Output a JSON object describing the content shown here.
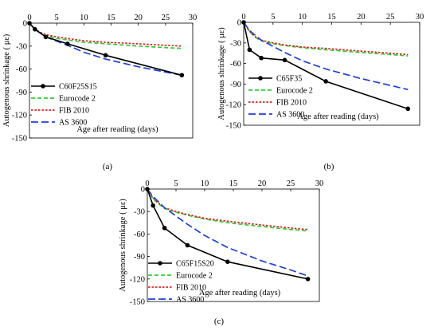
{
  "chart_data": [
    {
      "type": "line",
      "panel_label": "(a)",
      "xlabel": "Age after reading (days)",
      "ylabel": "Autogenous shrinkage ( με)",
      "xlim": [
        0,
        30
      ],
      "ylim": [
        -150,
        0
      ],
      "x_ticks": [
        0,
        5,
        10,
        15,
        20,
        25,
        30
      ],
      "y_ticks": [
        0,
        -30,
        -60,
        -90,
        -120,
        -150
      ],
      "x_axis_position": "top",
      "grid": false,
      "legend_position": "bottom-left",
      "series": [
        {
          "name": "C60F25S15",
          "color": "#000000",
          "style": "solid-marker",
          "x": [
            0,
            1,
            3,
            7,
            14,
            28
          ],
          "y": [
            0,
            -8,
            -18,
            -27,
            -42,
            -68
          ]
        },
        {
          "name": "Eurocode 2",
          "color": "#33cc33",
          "style": "dash",
          "x": [
            0,
            1,
            2,
            3,
            5,
            7,
            10,
            14,
            20,
            25,
            28
          ],
          "y": [
            0,
            -9,
            -13,
            -16,
            -20,
            -22,
            -25,
            -27,
            -30,
            -32,
            -33
          ]
        },
        {
          "name": "FIB 2010",
          "color": "#e02020",
          "style": "dot",
          "x": [
            0,
            1,
            2,
            3,
            5,
            7,
            10,
            14,
            20,
            25,
            28
          ],
          "y": [
            0,
            -8,
            -12,
            -15,
            -18,
            -20,
            -23,
            -25,
            -27,
            -29,
            -30
          ]
        },
        {
          "name": "AS 3600",
          "color": "#1f3fd9",
          "style": "longdash",
          "x": [
            0,
            1,
            3,
            7,
            10,
            14,
            20,
            25,
            28
          ],
          "y": [
            0,
            -8,
            -18,
            -29,
            -38,
            -47,
            -57,
            -64,
            -68
          ]
        }
      ]
    },
    {
      "type": "line",
      "panel_label": "(b)",
      "xlabel": "Age after reading (days)",
      "ylabel": "Autogenous shrinkage ( με)",
      "xlim": [
        0,
        30
      ],
      "ylim": [
        -150,
        0
      ],
      "x_ticks": [
        0,
        5,
        10,
        15,
        20,
        25,
        30
      ],
      "y_ticks": [
        0,
        -30,
        -60,
        -90,
        -120,
        -150
      ],
      "x_axis_position": "top",
      "grid": false,
      "legend_position": "bottom-left",
      "series": [
        {
          "name": "C65F35",
          "color": "#000000",
          "style": "solid-marker",
          "x": [
            0,
            1,
            3,
            7,
            14,
            28
          ],
          "y": [
            0,
            -40,
            -52,
            -55,
            -86,
            -126
          ]
        },
        {
          "name": "Eurocode 2",
          "color": "#33cc33",
          "style": "dash",
          "x": [
            0,
            1,
            2,
            3,
            5,
            7,
            10,
            14,
            20,
            25,
            28
          ],
          "y": [
            0,
            -14,
            -22,
            -27,
            -31,
            -34,
            -37,
            -40,
            -44,
            -47,
            -49
          ]
        },
        {
          "name": "FIB 2010",
          "color": "#e02020",
          "style": "dot",
          "x": [
            0,
            1,
            2,
            3,
            5,
            7,
            10,
            14,
            20,
            25,
            28
          ],
          "y": [
            0,
            -13,
            -21,
            -26,
            -30,
            -33,
            -36,
            -38,
            -42,
            -45,
            -47
          ]
        },
        {
          "name": "AS 3600",
          "color": "#1f3fd9",
          "style": "longdash",
          "x": [
            0,
            1,
            3,
            7,
            10,
            14,
            20,
            25,
            28
          ],
          "y": [
            0,
            -12,
            -26,
            -44,
            -56,
            -68,
            -82,
            -92,
            -98
          ]
        }
      ]
    },
    {
      "type": "line",
      "panel_label": "(c)",
      "xlabel": "Age after reading (days)",
      "ylabel": "Autogenous shrinkage ( με)",
      "xlim": [
        0,
        30
      ],
      "ylim": [
        -150,
        0
      ],
      "x_ticks": [
        0,
        5,
        10,
        15,
        20,
        25,
        30
      ],
      "y_ticks": [
        0,
        -30,
        -60,
        -90,
        -120,
        -150
      ],
      "x_axis_position": "top",
      "grid": false,
      "legend_position": "bottom-left",
      "series": [
        {
          "name": "C65F15S20",
          "color": "#000000",
          "style": "solid-marker",
          "x": [
            0,
            1,
            3,
            7,
            14,
            28
          ],
          "y": [
            0,
            -22,
            -52,
            -75,
            -97,
            -120
          ]
        },
        {
          "name": "Eurocode 2",
          "color": "#33cc33",
          "style": "dash",
          "x": [
            0,
            1,
            2,
            3,
            5,
            7,
            10,
            14,
            20,
            25,
            28
          ],
          "y": [
            0,
            -13,
            -20,
            -26,
            -31,
            -35,
            -40,
            -45,
            -50,
            -54,
            -56
          ]
        },
        {
          "name": "FIB 2010",
          "color": "#e02020",
          "style": "dot",
          "x": [
            0,
            1,
            2,
            3,
            5,
            7,
            10,
            14,
            20,
            25,
            28
          ],
          "y": [
            0,
            -12,
            -19,
            -25,
            -30,
            -34,
            -39,
            -43,
            -48,
            -52,
            -54
          ]
        },
        {
          "name": "AS 3600",
          "color": "#1f3fd9",
          "style": "longdash",
          "x": [
            0,
            1,
            3,
            7,
            10,
            14,
            20,
            25,
            28
          ],
          "y": [
            0,
            -10,
            -25,
            -47,
            -62,
            -78,
            -96,
            -108,
            -116
          ]
        }
      ]
    }
  ]
}
